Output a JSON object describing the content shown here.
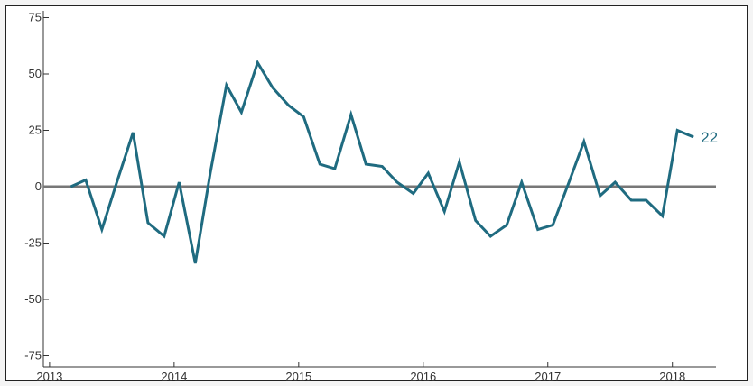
{
  "chart_data": {
    "type": "line",
    "title": "",
    "xlabel": "",
    "ylabel": "",
    "xlim": [
      2012.95,
      2018.35
    ],
    "ylim": [
      -80,
      78
    ],
    "x_ticks": [
      2013,
      2014,
      2015,
      2016,
      2017,
      2018
    ],
    "x_tick_labels": [
      "2013",
      "2014",
      "2015",
      "2016",
      "2017",
      "2018"
    ],
    "y_ticks": [
      75,
      50,
      25,
      0,
      -25,
      -50,
      -75
    ],
    "y_tick_labels": [
      "75",
      "50",
      "25",
      "0",
      "-25",
      "-50",
      "-75"
    ],
    "grid": false,
    "zero_line": true,
    "line_color": "#1f6b80",
    "zero_line_color": "#777777",
    "end_label": "22",
    "series": [
      {
        "x": [
          2013.17,
          2013.29,
          2013.42,
          2013.54,
          2013.67,
          2013.79,
          2013.92,
          2014.04,
          2014.17,
          2014.29,
          2014.42,
          2014.54,
          2014.67,
          2014.79,
          2014.92,
          2015.04,
          2015.17,
          2015.29,
          2015.42,
          2015.54,
          2015.67,
          2015.79,
          2015.92,
          2016.04,
          2016.17,
          2016.29,
          2016.42,
          2016.54,
          2016.67,
          2016.79,
          2016.92,
          2017.04,
          2017.17,
          2017.29,
          2017.42,
          2017.54,
          2017.67,
          2017.79,
          2017.92,
          2018.04,
          2018.17
        ],
        "values": [
          0,
          3,
          -19,
          2,
          24,
          -16,
          -22,
          2,
          -34,
          6,
          45,
          33,
          55,
          44,
          36,
          31,
          10,
          8,
          32,
          10,
          9,
          2,
          -3,
          6,
          -11,
          11,
          -15,
          -22,
          -17,
          2,
          -19,
          -17,
          2,
          20,
          -4,
          2,
          -6,
          -6,
          -13,
          25,
          22
        ]
      }
    ]
  }
}
